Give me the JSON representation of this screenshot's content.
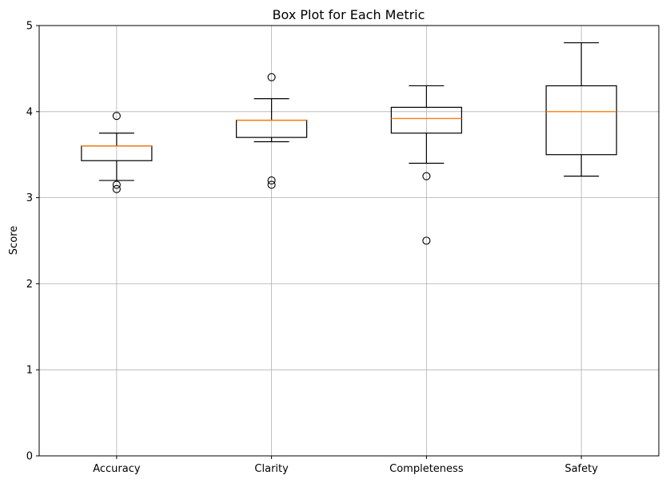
{
  "chart_data": {
    "type": "box",
    "title": "Box Plot for Each Metric",
    "xlabel": "",
    "ylabel": "Score",
    "ylim": [
      0,
      5
    ],
    "yticks": [
      0,
      1,
      2,
      3,
      4,
      5
    ],
    "grid": true,
    "categories": [
      "Accuracy",
      "Clarity",
      "Completeness",
      "Safety"
    ],
    "boxes": [
      {
        "whisker_low": 3.2,
        "q1": 3.43,
        "median": 3.6,
        "q3": 3.6,
        "whisker_high": 3.75,
        "outliers": [
          3.95,
          3.15,
          3.1
        ]
      },
      {
        "whisker_low": 3.65,
        "q1": 3.7,
        "median": 3.9,
        "q3": 3.9,
        "whisker_high": 4.15,
        "outliers": [
          4.4,
          3.2,
          3.15
        ]
      },
      {
        "whisker_low": 3.4,
        "q1": 3.75,
        "median": 3.92,
        "q3": 4.05,
        "whisker_high": 4.3,
        "outliers": [
          3.25,
          2.5
        ]
      },
      {
        "whisker_low": 3.25,
        "q1": 3.5,
        "median": 4.0,
        "q3": 4.3,
        "whisker_high": 4.8,
        "outliers": []
      }
    ],
    "colors": {
      "box": "#000000",
      "median": "#ff7f0e",
      "grid": "#b0b0b0"
    }
  }
}
